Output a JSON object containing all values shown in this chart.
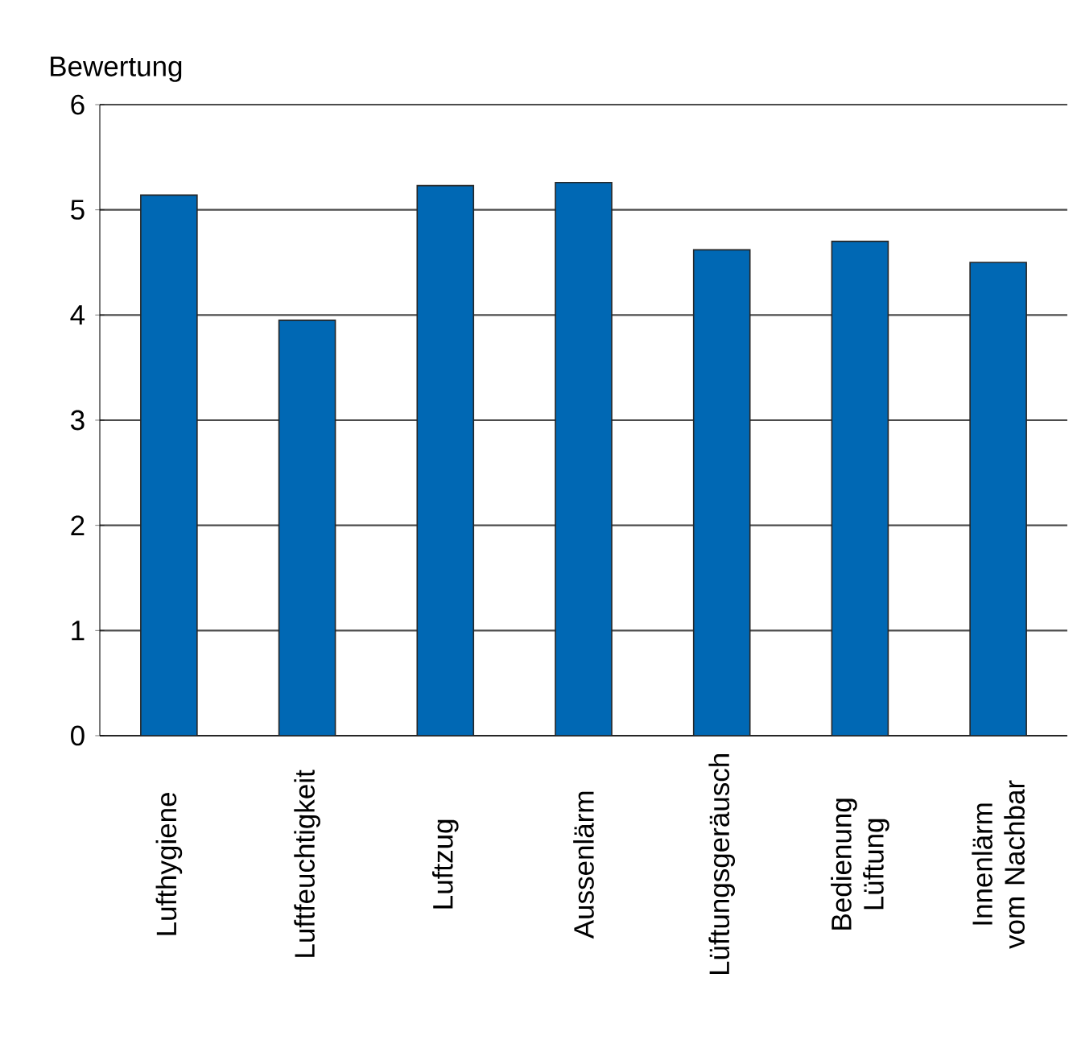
{
  "chart_data": {
    "type": "bar",
    "ylabel": "Bewertung",
    "categories": [
      "Lufthygiene",
      "Luftfeuchtigkeit",
      "Luftzug",
      "Aussenlärm",
      "Lüftungsgeräusch",
      "Bedienung Lüftung",
      "Innenlärm vom Nachbar"
    ],
    "values": [
      5.14,
      3.95,
      5.23,
      5.26,
      4.62,
      4.7,
      4.5
    ],
    "color": "#0068b4",
    "ylim": [
      0,
      6
    ],
    "yticks": [
      0,
      1,
      2,
      3,
      4,
      5,
      6
    ],
    "grid": "y"
  }
}
